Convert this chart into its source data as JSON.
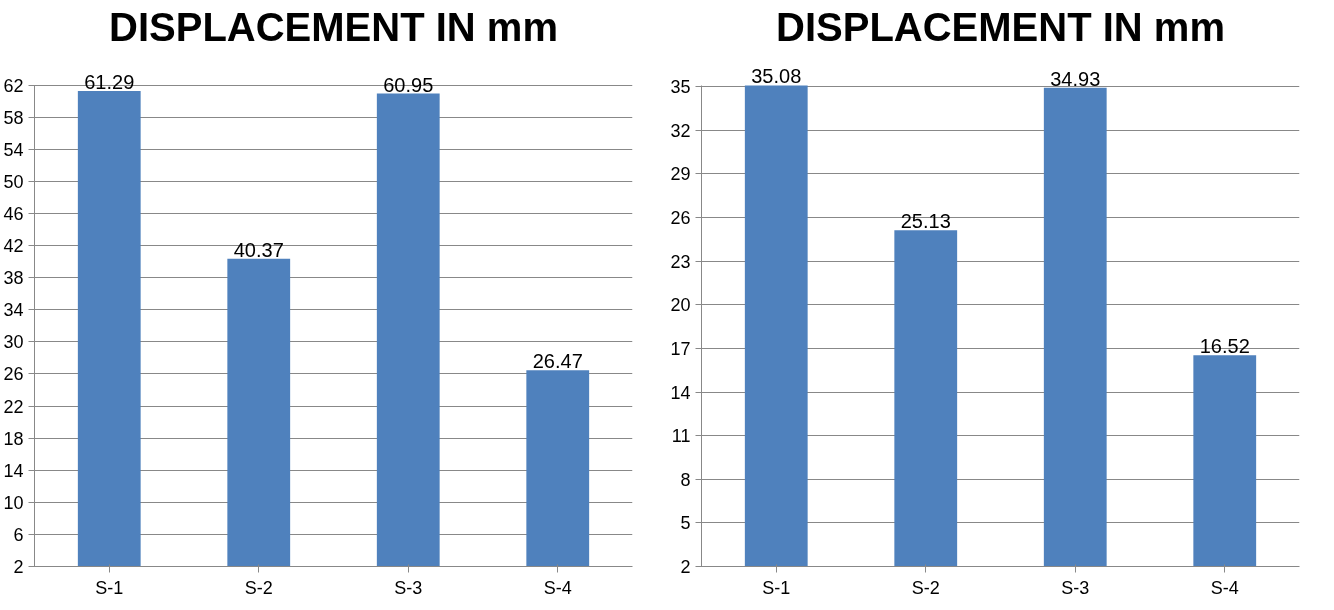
{
  "chart_data": [
    {
      "type": "bar",
      "title": "DISPLACEMENT IN mm",
      "categories": [
        "S-1",
        "S-2",
        "S-3",
        "S-4"
      ],
      "values": [
        61.29,
        40.37,
        60.95,
        26.47
      ],
      "color": "#4f81bd",
      "ylim": [
        2,
        62
      ],
      "yticks": [
        2,
        6,
        10,
        14,
        18,
        22,
        26,
        30,
        34,
        38,
        42,
        46,
        50,
        54,
        58,
        62
      ],
      "grid": "y",
      "data_labels": true
    },
    {
      "type": "bar",
      "title": "DISPLACEMENT IN mm",
      "categories": [
        "S-1",
        "S-2",
        "S-3",
        "S-4"
      ],
      "values": [
        35.08,
        25.13,
        34.93,
        16.52
      ],
      "color": "#4f81bd",
      "ylim": [
        2,
        35.1
      ],
      "yticks": [
        2,
        5,
        8,
        11,
        14,
        17,
        20,
        23,
        26,
        29,
        32,
        35
      ],
      "grid": "y",
      "data_labels": true
    }
  ]
}
